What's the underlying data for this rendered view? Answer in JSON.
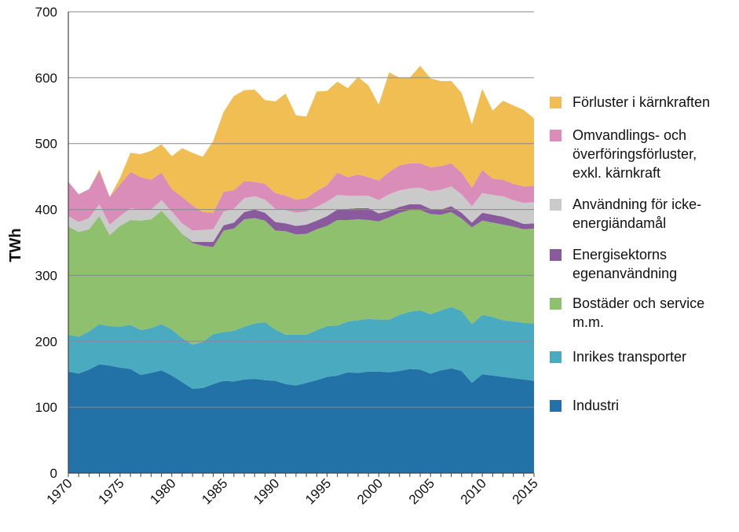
{
  "chart_data": {
    "type": "area",
    "stacked": true,
    "ylabel": "TWh",
    "xlabel": "",
    "title": "",
    "ylim": [
      0,
      700
    ],
    "yticks": [
      0,
      100,
      200,
      300,
      400,
      500,
      600,
      700
    ],
    "xlim": [
      1970,
      2015
    ],
    "xticks": [
      1970,
      1975,
      1980,
      1985,
      1990,
      1995,
      2000,
      2005,
      2010,
      2015
    ],
    "grid": true,
    "legend_position": "right",
    "x": [
      1970,
      1971,
      1972,
      1973,
      1974,
      1975,
      1976,
      1977,
      1978,
      1979,
      1980,
      1981,
      1982,
      1983,
      1984,
      1985,
      1986,
      1987,
      1988,
      1989,
      1990,
      1991,
      1992,
      1993,
      1994,
      1995,
      1996,
      1997,
      1998,
      1999,
      2000,
      2001,
      2002,
      2003,
      2004,
      2005,
      2006,
      2007,
      2008,
      2009,
      2010,
      2011,
      2012,
      2013,
      2014,
      2015
    ],
    "series": [
      {
        "name": "Industri",
        "color": "#2272a8",
        "values": [
          154,
          151,
          157,
          165,
          163,
          160,
          158,
          149,
          152,
          156,
          148,
          138,
          128,
          129,
          135,
          140,
          139,
          142,
          143,
          141,
          140,
          135,
          133,
          137,
          141,
          146,
          148,
          153,
          152,
          154,
          154,
          153,
          155,
          158,
          157,
          151,
          156,
          159,
          155,
          137,
          150,
          148,
          146,
          144,
          142,
          140
        ]
      },
      {
        "name": "Inrikes transporter",
        "color": "#4aabc0",
        "values": [
          56,
          56,
          58,
          61,
          60,
          62,
          67,
          68,
          68,
          70,
          70,
          67,
          67,
          70,
          76,
          74,
          77,
          80,
          84,
          88,
          78,
          75,
          77,
          73,
          76,
          77,
          76,
          77,
          80,
          80,
          79,
          80,
          85,
          87,
          90,
          90,
          91,
          93,
          91,
          89,
          90,
          89,
          86,
          86,
          86,
          87
        ]
      },
      {
        "name": "Bostäder och service m.m.",
        "color": "#8ec06d",
        "values": [
          164,
          159,
          155,
          164,
          138,
          153,
          159,
          166,
          165,
          172,
          163,
          158,
          154,
          146,
          132,
          154,
          155,
          163,
          160,
          154,
          150,
          157,
          152,
          153,
          153,
          152,
          160,
          154,
          153,
          150,
          149,
          155,
          155,
          154,
          152,
          152,
          145,
          144,
          140,
          147,
          143,
          143,
          145,
          144,
          142,
          144
        ]
      },
      {
        "name": "Energisektorns egenanvändning",
        "color": "#8a5a9e",
        "values": [
          0,
          0,
          0,
          0,
          0,
          0,
          0,
          0,
          0,
          0,
          0,
          0,
          2,
          6,
          8,
          8,
          9,
          11,
          13,
          12,
          13,
          12,
          13,
          14,
          13,
          15,
          16,
          17,
          17,
          18,
          12,
          10,
          9,
          9,
          9,
          8,
          8,
          9,
          9,
          7,
          12,
          12,
          12,
          10,
          8,
          8
        ]
      },
      {
        "name": "Användning för icke-energiändamål",
        "color": "#cacaca",
        "values": [
          16,
          15,
          17,
          18,
          16,
          15,
          18,
          16,
          15,
          16,
          16,
          16,
          17,
          18,
          19,
          21,
          21,
          21,
          20,
          20,
          20,
          20,
          20,
          20,
          21,
          22,
          22,
          20,
          19,
          19,
          20,
          25,
          25,
          24,
          25,
          27,
          30,
          30,
          28,
          25,
          30,
          30,
          31,
          30,
          32,
          32
        ]
      },
      {
        "name": "Omvandlings- och överföringsförluster, exkl. kärnkraft",
        "color": "#d98db8",
        "values": [
          52,
          42,
          44,
          50,
          42,
          48,
          55,
          50,
          45,
          42,
          34,
          40,
          38,
          27,
          25,
          30,
          28,
          26,
          22,
          24,
          24,
          22,
          20,
          20,
          24,
          25,
          34,
          28,
          32,
          28,
          30,
          34,
          38,
          38,
          37,
          36,
          36,
          35,
          33,
          28,
          35,
          25,
          25,
          25,
          25,
          25
        ]
      },
      {
        "name": "Förluster i kärnkraften",
        "color": "#f0be53",
        "values": [
          0,
          0,
          0,
          3,
          0,
          10,
          29,
          35,
          44,
          43,
          50,
          74,
          80,
          84,
          109,
          121,
          143,
          138,
          140,
          127,
          139,
          155,
          128,
          124,
          151,
          143,
          138,
          135,
          148,
          139,
          115,
          151,
          133,
          130,
          148,
          135,
          129,
          125,
          121,
          96,
          123,
          103,
          120,
          119,
          116,
          102
        ]
      }
    ]
  }
}
